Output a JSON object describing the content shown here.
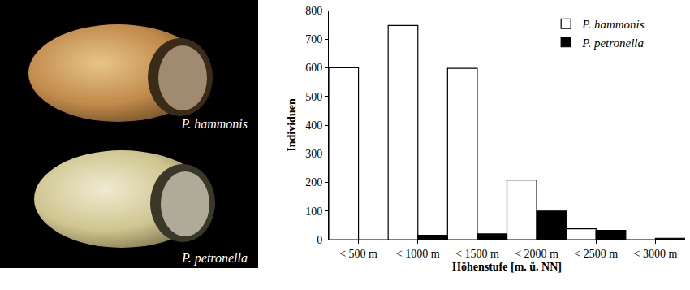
{
  "image_captions": [
    "P. hammonis",
    "P. petronella"
  ],
  "chart_data": {
    "type": "bar",
    "x_label": "Höhenstufe [m. ü. NN]",
    "y_label": "Individuen",
    "categories": [
      "< 500 m",
      "< 1000 m",
      "< 1500 m",
      "< 2000 m",
      "< 2500 m",
      "< 3000 m"
    ],
    "series": [
      {
        "name": "P. hammonis",
        "color": "#ffffff",
        "values": [
          600,
          748,
          598,
          208,
          38,
          0
        ]
      },
      {
        "name": "P. petronella",
        "color": "#000000",
        "values": [
          0,
          15,
          20,
          100,
          32,
          5
        ]
      }
    ],
    "ylim": [
      0,
      800
    ],
    "yticks": [
      0,
      100,
      200,
      300,
      400,
      500,
      600,
      700,
      800
    ],
    "grid": false,
    "legend": "top right"
  }
}
